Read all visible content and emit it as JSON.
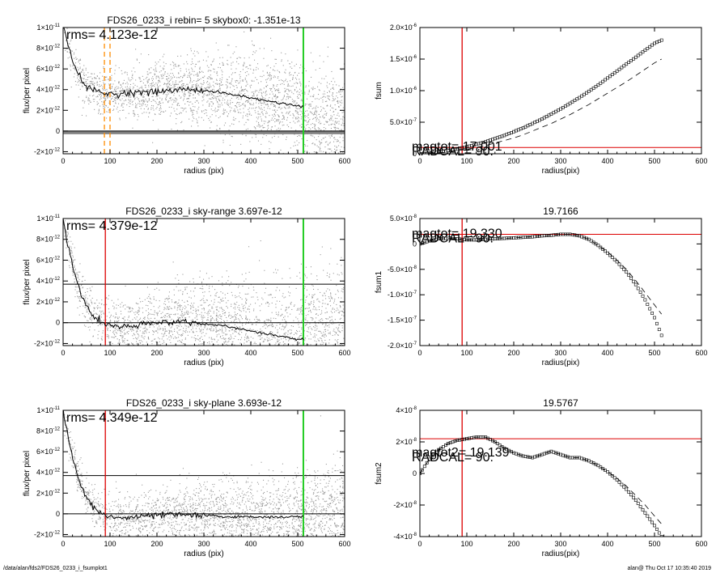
{
  "footer": {
    "left": "/data/alan/fds2/FDS26_0233_i_fsumplot1",
    "right": "alan@  Thu Oct 17 10:35:40 2019"
  },
  "chart_data": [
    {
      "type": "scatter",
      "title": "FDS26_0233_i rebin= 5    skybox0: -1.351e-13",
      "xlabel": "radius (pix)",
      "ylabel": "flux/per pixel",
      "xlim": [
        0,
        600
      ],
      "ylim": [
        -2.2e-12,
        1e-11
      ],
      "xticks": [
        "0",
        "100",
        "200",
        "300",
        "400",
        "500",
        "600"
      ],
      "yticks": [
        {
          "v": 1e-11,
          "t": "1×10",
          "e": "-11"
        },
        {
          "v": 8e-12,
          "t": "8×10",
          "e": "-12"
        },
        {
          "v": 6e-12,
          "t": "6×10",
          "e": "-12"
        },
        {
          "v": 4e-12,
          "t": "4×10",
          "e": "-12"
        },
        {
          "v": 2e-12,
          "t": "2×10",
          "e": "-12"
        },
        {
          "v": 0,
          "t": "0",
          "e": ""
        },
        {
          "v": -2e-12,
          "t": "-2×10",
          "e": "-12"
        }
      ],
      "annotation": "rms= 4.123e-12",
      "profile_x": [
        0,
        10,
        20,
        30,
        40,
        50,
        60,
        70,
        80,
        90,
        100,
        120,
        140,
        160,
        180,
        200,
        220,
        240,
        260,
        280,
        300,
        320,
        340,
        360,
        380,
        400,
        420,
        440,
        460,
        480,
        500,
        512
      ],
      "profile_y": [
        1e-11,
        8.5e-12,
        7e-12,
        5.8e-12,
        4.8e-12,
        4.3e-12,
        4e-12,
        3.9e-12,
        3.7e-12,
        3.6e-12,
        3.6e-12,
        3.6e-12,
        3.7e-12,
        3.8e-12,
        3.7e-12,
        3.8e-12,
        3.9e-12,
        3.9e-12,
        4.1e-12,
        4e-12,
        3.9e-12,
        3.8e-12,
        3.7e-12,
        3.5e-12,
        3.4e-12,
        3.2e-12,
        3e-12,
        2.9e-12,
        2.7e-12,
        2.6e-12,
        2.4e-12,
        2.4e-12
      ],
      "hlines": [
        {
          "y": 0,
          "color": "#000000"
        }
      ],
      "vlines": [
        {
          "x": 88,
          "color": "#ff8c00",
          "dash": true
        },
        {
          "x": 100,
          "color": "#ff8c00",
          "dash": true
        },
        {
          "x": 512,
          "color": "#22cc22",
          "dash": false
        }
      ],
      "noise": {
        "center": 1.5e-12,
        "spread": 2.5e-12,
        "band_y": -1.5e-13
      }
    },
    {
      "type": "line",
      "title": "",
      "xlabel": "radius(pix)",
      "ylabel": "fsum",
      "xlim": [
        0,
        600
      ],
      "ylim": [
        0,
        2e-06
      ],
      "xticks": [
        "0",
        "100",
        "200",
        "300",
        "400",
        "500",
        "600"
      ],
      "yticks": [
        {
          "v": 2e-06,
          "t": "2.0×10",
          "e": "-6"
        },
        {
          "v": 1.5e-06,
          "t": "1.5×10",
          "e": "-6"
        },
        {
          "v": 1e-06,
          "t": "1.0×10",
          "e": "-6"
        },
        {
          "v": 5e-07,
          "t": "5.0×10",
          "e": "-7"
        },
        {
          "v": 0,
          "t": "0",
          "e": ""
        }
      ],
      "labels": [
        "magtot=  17.001",
        "RADCAL=  90."
      ],
      "x": [
        0,
        20,
        40,
        60,
        80,
        100,
        120,
        140,
        160,
        180,
        200,
        220,
        240,
        260,
        280,
        300,
        320,
        340,
        360,
        380,
        400,
        420,
        440,
        460,
        480,
        500,
        515
      ],
      "y": [
        0,
        1e-08,
        3e-08,
        5e-08,
        8e-08,
        1.1e-07,
        1.5e-07,
        1.9e-07,
        2.4e-07,
        2.9e-07,
        3.5e-07,
        4.1e-07,
        4.8e-07,
        5.5e-07,
        6.3e-07,
        7.1e-07,
        8e-07,
        8.9e-07,
        9.9e-07,
        1.09e-06,
        1.2e-06,
        1.31e-06,
        1.42e-06,
        1.53e-06,
        1.64e-06,
        1.75e-06,
        1.8e-06
      ],
      "y_dash": [
        0,
        5e-09,
        1.5e-08,
        3e-08,
        5e-08,
        7e-08,
        1e-07,
        1.3e-07,
        1.7e-07,
        2.1e-07,
        2.5e-07,
        3e-07,
        3.6e-07,
        4.2e-07,
        4.8e-07,
        5.5e-07,
        6.2e-07,
        7e-07,
        7.8e-07,
        8.7e-07,
        9.6e-07,
        1.05e-06,
        1.14e-06,
        1.24e-06,
        1.34e-06,
        1.44e-06,
        1.5e-06
      ],
      "hlines": [
        {
          "y": 1e-07,
          "color": "#dd0000"
        }
      ],
      "vlines": [
        {
          "x": 90,
          "color": "#dd0000"
        }
      ]
    },
    {
      "type": "scatter",
      "title": "FDS26_0233_i sky-range  3.697e-12",
      "xlabel": "radius (pix)",
      "ylabel": "flux/per pixel",
      "xlim": [
        0,
        600
      ],
      "ylim": [
        -2.2e-12,
        1e-11
      ],
      "xticks": [
        "0",
        "100",
        "200",
        "300",
        "400",
        "500",
        "600"
      ],
      "yticks": [
        {
          "v": 1e-11,
          "t": "1×10",
          "e": "-11"
        },
        {
          "v": 8e-12,
          "t": "8×10",
          "e": "-12"
        },
        {
          "v": 6e-12,
          "t": "6×10",
          "e": "-12"
        },
        {
          "v": 4e-12,
          "t": "4×10",
          "e": "-12"
        },
        {
          "v": 2e-12,
          "t": "2×10",
          "e": "-12"
        },
        {
          "v": 0,
          "t": "0",
          "e": ""
        },
        {
          "v": -2e-12,
          "t": "-2×10",
          "e": "-12"
        }
      ],
      "annotation": "rms= 4.379e-12",
      "profile_x": [
        0,
        10,
        20,
        30,
        40,
        50,
        60,
        70,
        80,
        90,
        100,
        120,
        140,
        160,
        180,
        200,
        220,
        240,
        260,
        280,
        300,
        320,
        340,
        360,
        380,
        400,
        420,
        440,
        460,
        480,
        500,
        512
      ],
      "profile_y": [
        1e-11,
        7.5e-12,
        5.5e-12,
        3.8e-12,
        2.5e-12,
        1.6e-12,
        9e-13,
        4e-13,
        1e-13,
        -1e-13,
        -3e-13,
        -4e-13,
        -4e-13,
        -3e-13,
        -1e-13,
        -5e-14,
        1e-13,
        1e-13,
        1e-13,
        0.0,
        -1e-13,
        -2e-13,
        -3e-13,
        -5e-13,
        -6e-13,
        -8e-13,
        -1e-12,
        -1.1e-12,
        -1.3e-12,
        -1.4e-12,
        -1.6e-12,
        -1.6e-12
      ],
      "hlines": [
        {
          "y": 3.697e-12,
          "color": "#000000"
        },
        {
          "y": 0,
          "color": "#000000"
        }
      ],
      "vlines": [
        {
          "x": 90,
          "color": "#dd0000",
          "dash": false
        },
        {
          "x": 512,
          "color": "#22cc22",
          "dash": false
        }
      ],
      "noise": {
        "center": -5e-13,
        "spread": 2.8e-12,
        "band_y": null
      }
    },
    {
      "type": "line",
      "title": "19.7166",
      "xlabel": "radius(pix)",
      "ylabel": "fsum1",
      "xlim": [
        0,
        600
      ],
      "ylim": [
        -2e-07,
        5e-08
      ],
      "xticks": [
        "0",
        "100",
        "200",
        "300",
        "400",
        "500",
        "600"
      ],
      "yticks": [
        {
          "v": 5e-08,
          "t": "5.0×10",
          "e": "-8"
        },
        {
          "v": 0,
          "t": "0",
          "e": ""
        },
        {
          "v": -5e-08,
          "t": "-5.0×10",
          "e": "-8"
        },
        {
          "v": -1e-07,
          "t": "-1.0×10",
          "e": "-7"
        },
        {
          "v": -1.5e-07,
          "t": "-1.5×10",
          "e": "-7"
        },
        {
          "v": -2e-07,
          "t": "-2.0×10",
          "e": "-7"
        }
      ],
      "labels": [
        "magtot=  19.330",
        "RADCAL=  90."
      ],
      "x": [
        0,
        20,
        40,
        60,
        80,
        100,
        120,
        140,
        160,
        180,
        200,
        220,
        240,
        260,
        280,
        300,
        320,
        340,
        360,
        380,
        400,
        420,
        440,
        460,
        480,
        500,
        515
      ],
      "y": [
        0,
        6e-09,
        1e-08,
        1.1e-08,
        1e-08,
        8e-09,
        8e-09,
        9e-09,
        1e-08,
        1.1e-08,
        1.2e-08,
        1.3e-08,
        1.4e-08,
        1.6e-08,
        1.7e-08,
        1.9e-08,
        1.9e-08,
        1.6e-08,
        9e-09,
        -3e-09,
        -1.8e-08,
        -3.5e-08,
        -5.5e-08,
        -8e-08,
        -1.1e-07,
        -1.45e-07,
        -1.8e-07
      ],
      "y_dash": [
        0,
        6e-09,
        1e-08,
        1.1e-08,
        1e-08,
        8e-09,
        8e-09,
        9e-09,
        1e-08,
        1.1e-08,
        1.2e-08,
        1.3e-08,
        1.4e-08,
        1.6e-08,
        1.7e-08,
        1.9e-08,
        1.9e-08,
        1.6e-08,
        9e-09,
        -3e-09,
        -1.6e-08,
        -3.2e-08,
        -5e-08,
        -7.2e-08,
        -9.6e-08,
        -1.2e-07,
        -1.38e-07
      ],
      "hlines": [
        {
          "y": 1.9e-08,
          "color": "#dd0000"
        }
      ],
      "vlines": [
        {
          "x": 90,
          "color": "#dd0000"
        }
      ]
    },
    {
      "type": "scatter",
      "title": "FDS26_0233_i sky-plane  3.693e-12",
      "xlabel": "radius (pix)",
      "ylabel": "flux/per pixel",
      "xlim": [
        0,
        600
      ],
      "ylim": [
        -2.2e-12,
        1e-11
      ],
      "xticks": [
        "0",
        "100",
        "200",
        "300",
        "400",
        "500",
        "600"
      ],
      "yticks": [
        {
          "v": 1e-11,
          "t": "1×10",
          "e": "-11"
        },
        {
          "v": 8e-12,
          "t": "8×10",
          "e": "-12"
        },
        {
          "v": 6e-12,
          "t": "6×10",
          "e": "-12"
        },
        {
          "v": 4e-12,
          "t": "4×10",
          "e": "-12"
        },
        {
          "v": 2e-12,
          "t": "2×10",
          "e": "-12"
        },
        {
          "v": 0,
          "t": "0",
          "e": ""
        },
        {
          "v": -2e-12,
          "t": "-2×10",
          "e": "-12"
        }
      ],
      "annotation": "rms= 4.349e-12",
      "profile_x": [
        0,
        10,
        20,
        30,
        40,
        50,
        60,
        70,
        80,
        90,
        100,
        120,
        140,
        160,
        180,
        200,
        220,
        240,
        260,
        280,
        300,
        320,
        340,
        360,
        380,
        400,
        420,
        440,
        460,
        480,
        500,
        512
      ],
      "profile_y": [
        1e-11,
        7.5e-12,
        5.5e-12,
        3.8e-12,
        2.5e-12,
        1.6e-12,
        9e-13,
        4e-13,
        1e-13,
        -1e-13,
        -3e-13,
        -4e-13,
        -4e-13,
        -3e-13,
        -2e-13,
        -1.5e-13,
        -1e-13,
        -1e-13,
        -1e-13,
        -1.5e-13,
        -2e-13,
        -2e-13,
        -2.5e-13,
        -3e-13,
        -3e-13,
        -3e-13,
        -3e-13,
        -3e-13,
        -3e-13,
        -3e-13,
        -3e-13,
        -3e-13
      ],
      "hlines": [
        {
          "y": 3.693e-12,
          "color": "#000000"
        },
        {
          "y": 0,
          "color": "#000000"
        }
      ],
      "vlines": [
        {
          "x": 90,
          "color": "#dd0000",
          "dash": false
        },
        {
          "x": 512,
          "color": "#22cc22",
          "dash": false
        }
      ],
      "noise": {
        "center": 3e-13,
        "spread": 2.2e-12,
        "band_y": null
      }
    },
    {
      "type": "line",
      "title": "19.5767",
      "xlabel": "radius(pix)",
      "ylabel": "fsum2",
      "xlim": [
        0,
        600
      ],
      "ylim": [
        -4e-08,
        4e-08
      ],
      "xticks": [
        "0",
        "100",
        "200",
        "300",
        "400",
        "500",
        "600"
      ],
      "yticks": [
        {
          "v": 4e-08,
          "t": "4×10",
          "e": "-8"
        },
        {
          "v": 2e-08,
          "t": "2×10",
          "e": "-8"
        },
        {
          "v": 0,
          "t": "0",
          "e": ""
        },
        {
          "v": -2e-08,
          "t": "-2×10",
          "e": "-8"
        },
        {
          "v": -4e-08,
          "t": "-4×10",
          "e": "-8"
        }
      ],
      "labels": [
        "magtot2=  19.139",
        "RADCAL=  90."
      ],
      "x": [
        0,
        20,
        40,
        60,
        80,
        100,
        120,
        140,
        160,
        180,
        200,
        220,
        240,
        260,
        280,
        300,
        320,
        340,
        360,
        380,
        400,
        420,
        440,
        460,
        480,
        500,
        515
      ],
      "y": [
        0,
        9e-09,
        1.5e-08,
        1.9e-08,
        2.1e-08,
        2.2e-08,
        2.3e-08,
        2.3e-08,
        2e-08,
        1.6e-08,
        1.3e-08,
        1.1e-08,
        1e-08,
        1.2e-08,
        1.4e-08,
        1.2e-08,
        1e-08,
        1e-08,
        8e-09,
        5e-09,
        1e-09,
        -4e-09,
        -1e-08,
        -1.7e-08,
        -2.5e-08,
        -3.3e-08,
        -4e-08
      ],
      "y_dash": [
        0,
        9e-09,
        1.5e-08,
        1.9e-08,
        2.1e-08,
        2.2e-08,
        2.3e-08,
        2.3e-08,
        2e-08,
        1.6e-08,
        1.3e-08,
        1.1e-08,
        1e-08,
        1.2e-08,
        1.4e-08,
        1.2e-08,
        1e-08,
        1e-08,
        8e-09,
        5e-09,
        1e-09,
        -3e-09,
        -8e-09,
        -1.4e-08,
        -2e-08,
        -2.7e-08,
        -3.2e-08
      ],
      "hlines": [
        {
          "y": 2.2e-08,
          "color": "#dd0000"
        }
      ],
      "vlines": [
        {
          "x": 90,
          "color": "#dd0000"
        }
      ]
    }
  ]
}
